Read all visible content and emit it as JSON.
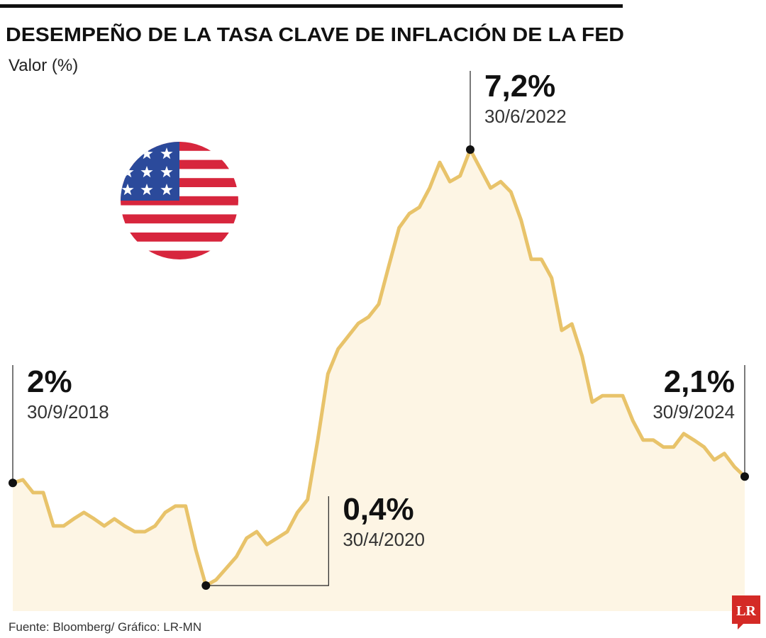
{
  "chart_data": {
    "type": "line",
    "title": "DESEMPEÑO DE LA TASA CLAVE DE INFLACIÓN DE LA FED",
    "subtitle": "Valor (%)",
    "source": "Fuente: Bloomberg/ Gráfico: LR-MN",
    "logo": "LR",
    "color": "#e8c36a",
    "area_color": "#fdf5e4",
    "categories": [
      "30/9/2018",
      null,
      null,
      null,
      null,
      null,
      null,
      null,
      null,
      null,
      null,
      null,
      null,
      null,
      null,
      null,
      null,
      null,
      null,
      "30/4/2020",
      null,
      null,
      null,
      null,
      null,
      null,
      null,
      null,
      null,
      null,
      null,
      null,
      null,
      null,
      null,
      null,
      null,
      null,
      null,
      null,
      null,
      null,
      null,
      null,
      null,
      "30/6/2022",
      null,
      null,
      null,
      null,
      null,
      null,
      null,
      null,
      null,
      null,
      null,
      null,
      null,
      null,
      null,
      null,
      null,
      null,
      null,
      null,
      null,
      null,
      null,
      null,
      null,
      null,
      "30/9/2024"
    ],
    "values": [
      2.0,
      2.05,
      1.85,
      1.85,
      1.33,
      1.33,
      1.44,
      1.54,
      1.44,
      1.33,
      1.44,
      1.33,
      1.24,
      1.24,
      1.33,
      1.54,
      1.64,
      1.64,
      0.96,
      0.4,
      0.49,
      0.67,
      0.85,
      1.14,
      1.24,
      1.04,
      1.14,
      1.24,
      1.54,
      1.74,
      2.67,
      3.7,
      4.09,
      4.29,
      4.49,
      4.59,
      4.79,
      5.39,
      5.98,
      6.2,
      6.3,
      6.6,
      7.0,
      6.7,
      6.79,
      7.2,
      6.9,
      6.6,
      6.7,
      6.54,
      6.1,
      5.49,
      5.49,
      5.2,
      4.38,
      4.48,
      3.98,
      3.26,
      3.36,
      3.36,
      3.36,
      2.97,
      2.67,
      2.67,
      2.56,
      2.56,
      2.77,
      2.67,
      2.56,
      2.36,
      2.46,
      2.25,
      2.1
    ],
    "value_labels": [
      "2%",
      null,
      null,
      null,
      null,
      null,
      null,
      null,
      null,
      null,
      null,
      null,
      null,
      null,
      null,
      null,
      null,
      null,
      null,
      "0,4%",
      null,
      null,
      null,
      null,
      null,
      null,
      null,
      null,
      null,
      null,
      null,
      null,
      null,
      null,
      null,
      null,
      null,
      null,
      null,
      null,
      null,
      null,
      null,
      null,
      null,
      "7,2%",
      null,
      null,
      null,
      null,
      null,
      null,
      null,
      null,
      null,
      null,
      null,
      null,
      null,
      null,
      null,
      null,
      null,
      null,
      null,
      null,
      null,
      null,
      null,
      null,
      null,
      null,
      "2,1%"
    ]
  }
}
